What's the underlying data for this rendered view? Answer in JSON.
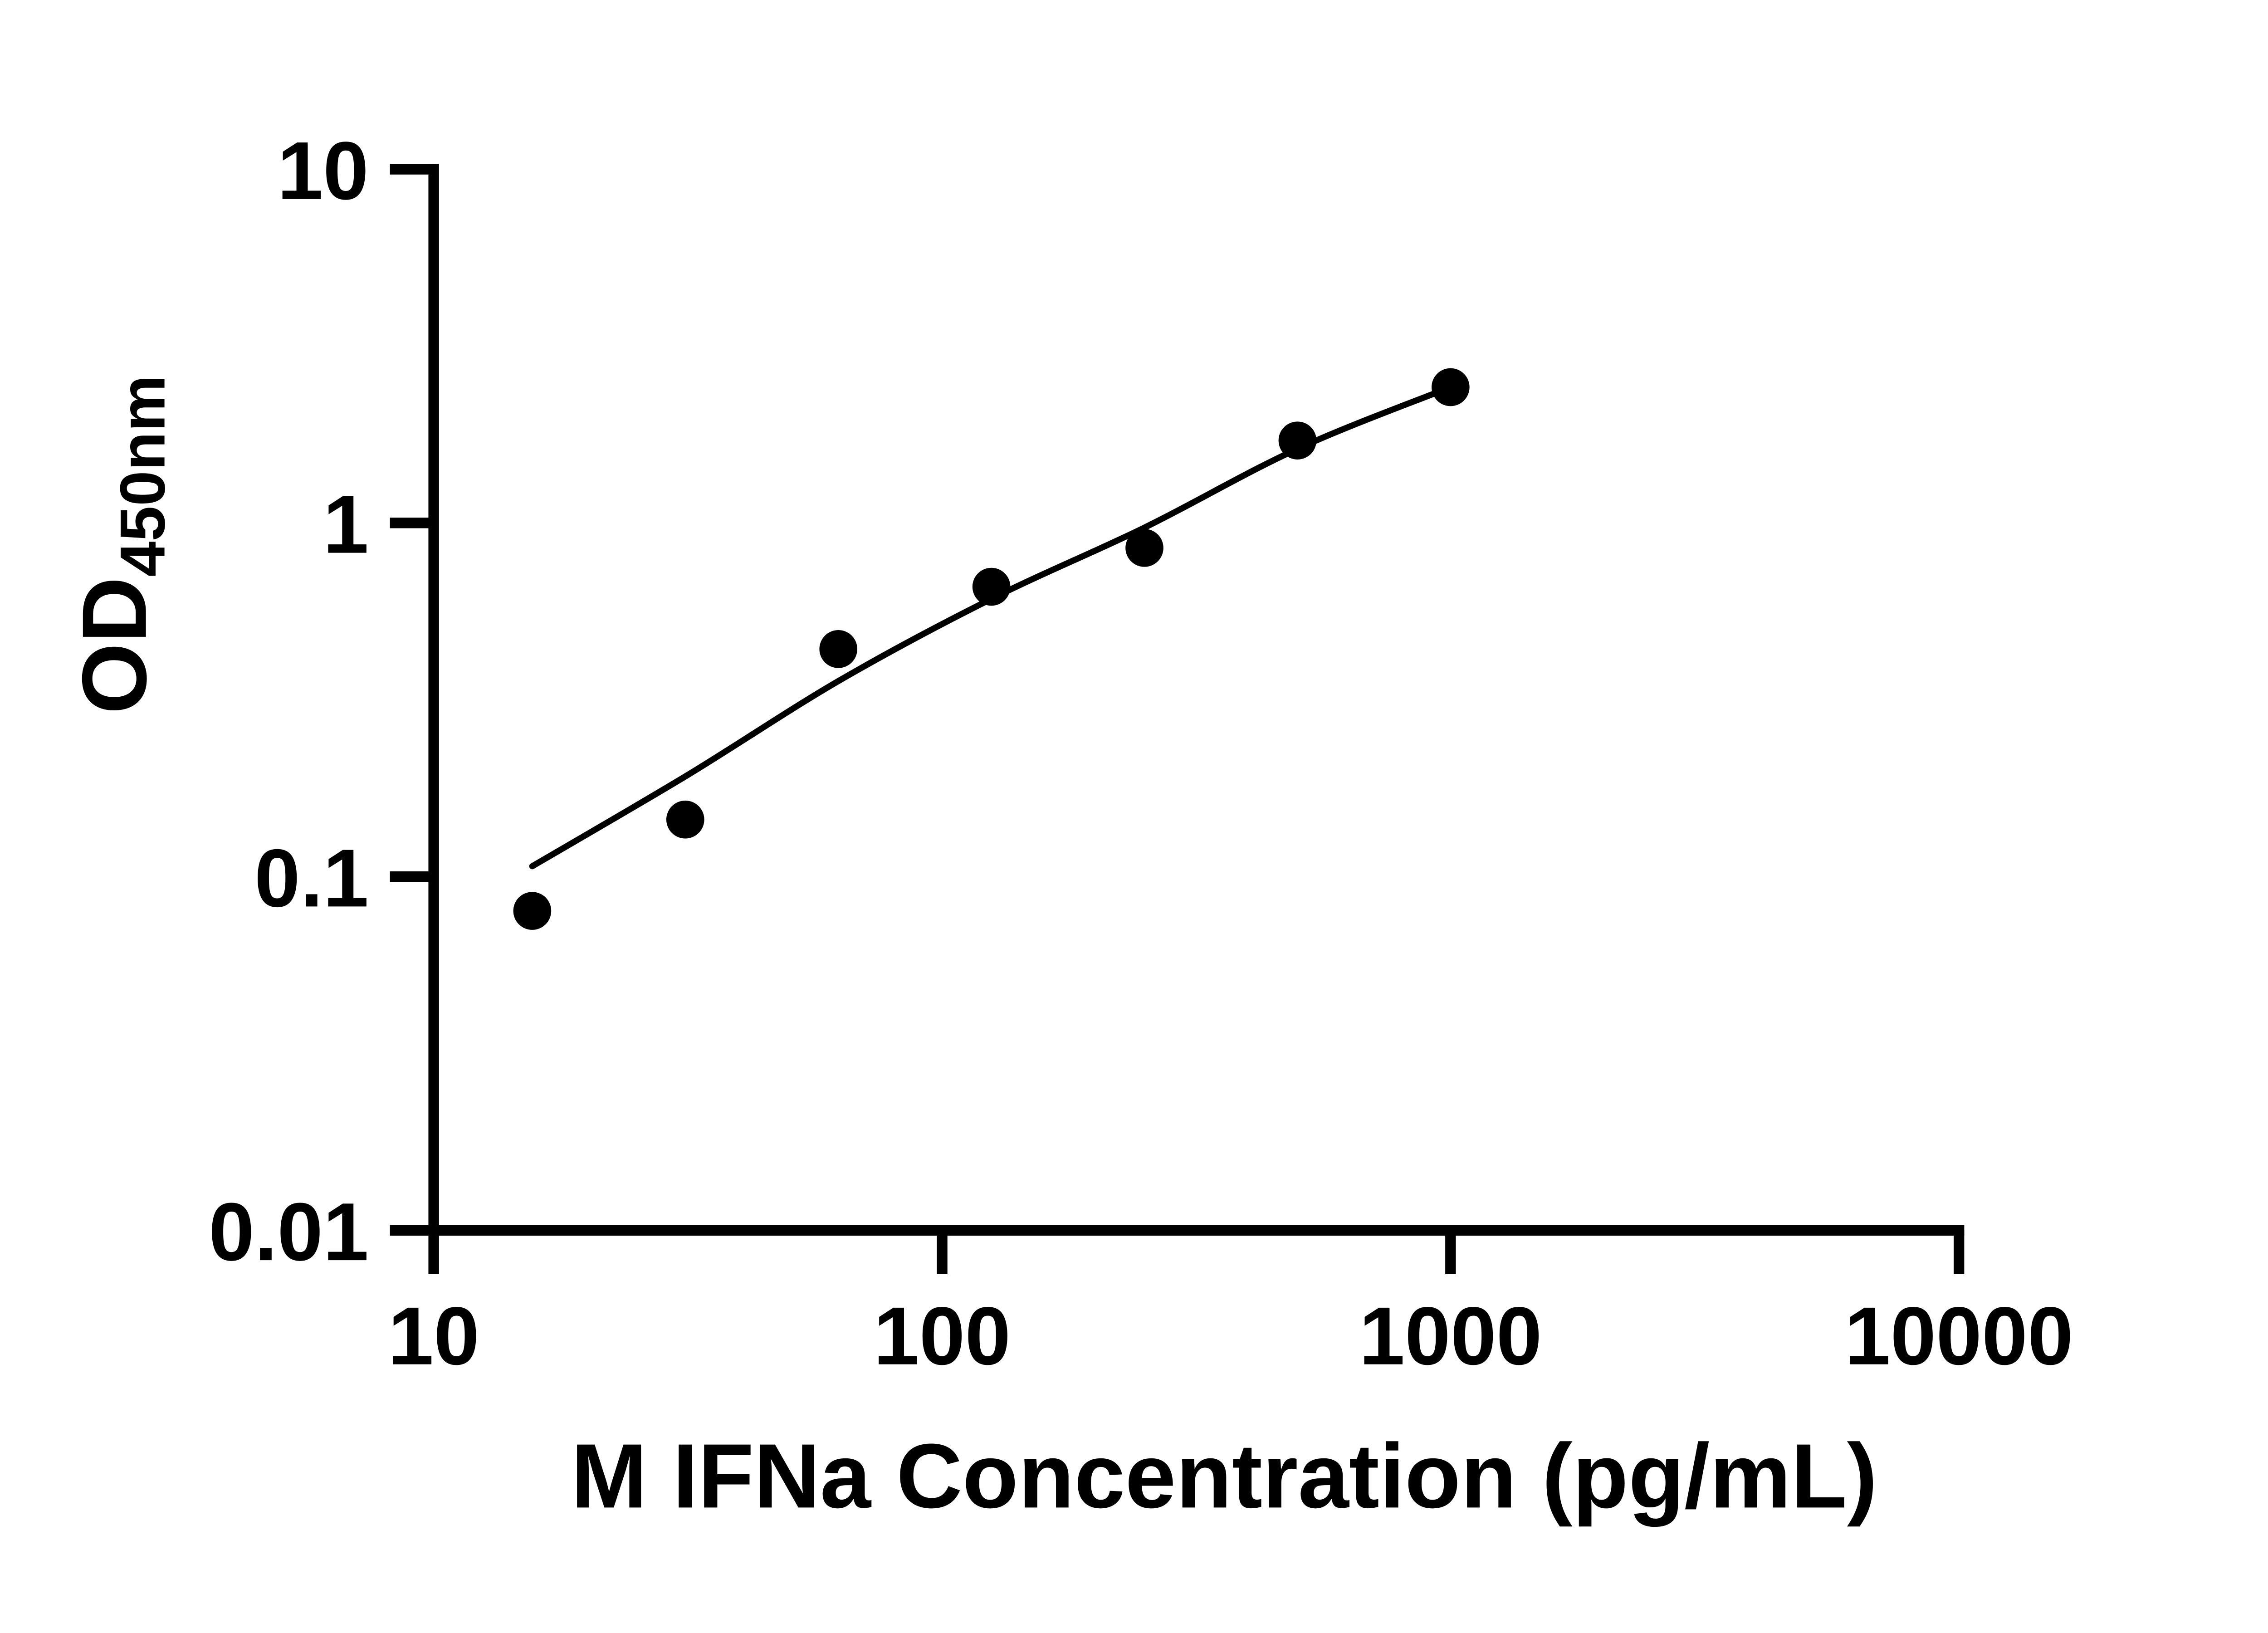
{
  "figure": {
    "background_color": "#ffffff",
    "ink_color": "#000000"
  },
  "chart_data": {
    "type": "scatter",
    "title": "",
    "xlabel": "M IFNa Concentration (pg/mL)",
    "ylabel": "OD",
    "ylabel_subscript": "450nm",
    "x_scale": "log",
    "y_scale": "log",
    "xlim": [
      10,
      10000
    ],
    "ylim": [
      0.01,
      10
    ],
    "grid": "off",
    "legend": "none",
    "x_ticks": [
      10,
      100,
      1000,
      10000
    ],
    "x_tick_labels": [
      "10",
      "100",
      "1000",
      "10000"
    ],
    "y_ticks": [
      10,
      1,
      0.1,
      0.01
    ],
    "y_tick_labels": [
      "10",
      "1",
      "0.1",
      "0.01"
    ],
    "series": [
      {
        "name": "standard-points",
        "marker": "filled-circle",
        "color": "#000000",
        "x": [
          15.625,
          31.25,
          62.5,
          125,
          250,
          500,
          1000
        ],
        "y": [
          0.08,
          0.145,
          0.44,
          0.66,
          0.85,
          1.71,
          2.42
        ]
      }
    ],
    "fit_curve": {
      "name": "fitted-standard-curve",
      "color": "#000000",
      "x": [
        15.625,
        31.25,
        62.5,
        125,
        250,
        500,
        1000
      ],
      "y": [
        0.107,
        0.192,
        0.357,
        0.61,
        0.97,
        1.62,
        2.42
      ]
    }
  }
}
